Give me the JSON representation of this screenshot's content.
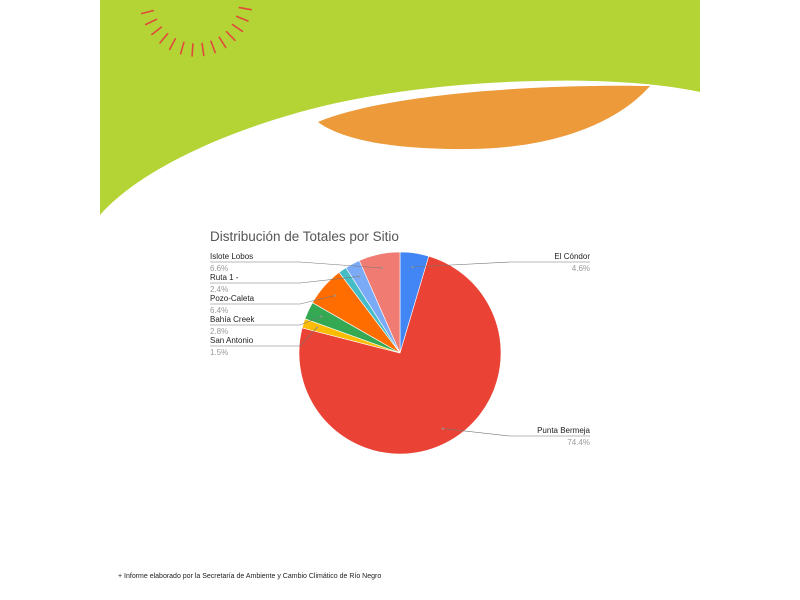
{
  "colors": {
    "banner_green": "#b4d335",
    "banner_orange": "#ec9a3a",
    "burst_red": "#e04a3a"
  },
  "chart_data": {
    "type": "pie",
    "title": "Distribución de Totales por Sitio",
    "legend": "none",
    "slices": [
      {
        "label": "El Cóndor",
        "value": 4.6,
        "display": "4.6%",
        "color": "#4285f4"
      },
      {
        "label": "Punta Bermeja",
        "value": 74.4,
        "display": "74.4%",
        "color": "#ea4335"
      },
      {
        "label": "San Antonio",
        "value": 1.5,
        "display": "1.5%",
        "color": "#fbbc04"
      },
      {
        "label": "Bahía Creek",
        "value": 2.8,
        "display": "2.8%",
        "color": "#34a853"
      },
      {
        "label": "Pozo-Caleta",
        "value": 6.4,
        "display": "6.4%",
        "color": "#ff6d01"
      },
      {
        "label": "",
        "value": 1.3,
        "display": "",
        "color": "#46bdc6"
      },
      {
        "label": "Ruta 1 -",
        "value": 2.4,
        "display": "2.4%",
        "color": "#7baaf7"
      },
      {
        "label": "Islote Lobos",
        "value": 6.6,
        "display": "6.6%",
        "color": "#f07b72"
      }
    ]
  },
  "footer": {
    "text": "+ Informe elaborado por la Secretaría de Ambiente y Cambio Climático de Río Negro"
  }
}
